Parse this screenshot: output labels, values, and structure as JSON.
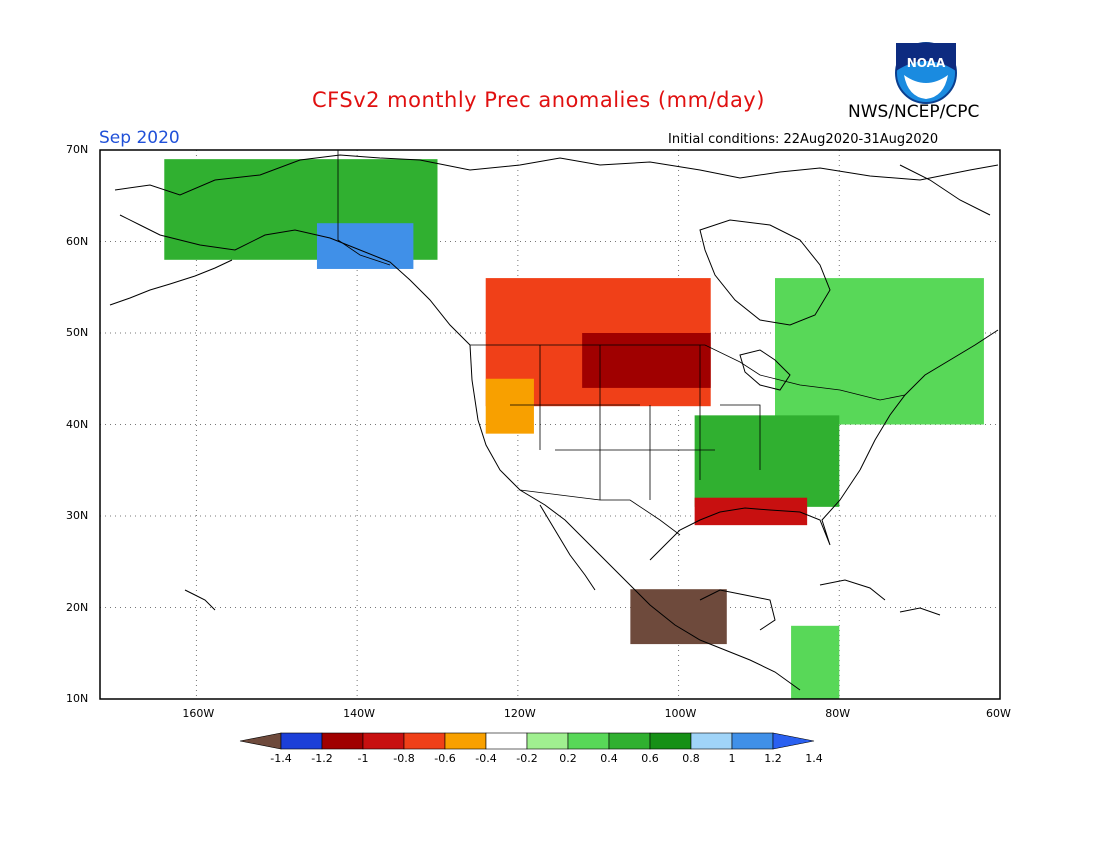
{
  "title": "CFSv2 monthly Prec anomalies (mm/day)",
  "agency": "NWS/NCEP/CPC",
  "logo_text": "NOAA",
  "month_label": "Sep 2020",
  "initial_conditions": "Initial conditions: 22Aug2020-31Aug2020",
  "map": {
    "lon_range": [
      -172,
      -60
    ],
    "lat_range": [
      10,
      70
    ],
    "lat_ticks": [
      {
        "value": 70,
        "label": "70N"
      },
      {
        "value": 60,
        "label": "60N"
      },
      {
        "value": 50,
        "label": "50N"
      },
      {
        "value": 40,
        "label": "40N"
      },
      {
        "value": 30,
        "label": "30N"
      },
      {
        "value": 20,
        "label": "20N"
      },
      {
        "value": 10,
        "label": "10N"
      }
    ],
    "lon_ticks": [
      {
        "value": -160,
        "label": "160W"
      },
      {
        "value": -140,
        "label": "140W"
      },
      {
        "value": -120,
        "label": "120W"
      },
      {
        "value": -100,
        "label": "100W"
      },
      {
        "value": -80,
        "label": "80W"
      },
      {
        "value": -60,
        "label": "60W"
      }
    ],
    "grid": "dotted"
  },
  "colorbar": {
    "colors": [
      "#6e4a3c",
      "#1c3fd8",
      "#a00000",
      "#c81010",
      "#f04018",
      "#f8a000",
      "#ffffff",
      "#a0f090",
      "#58d858",
      "#30b030",
      "#169016",
      "#a0d4f8",
      "#4090e8",
      "#2a60f0"
    ],
    "labels": [
      "-1.4",
      "-1.2",
      "-1",
      "-0.8",
      "-0.6",
      "-0.4",
      "-0.2",
      "0.2",
      "0.4",
      "0.6",
      "0.8",
      "1",
      "1.2",
      "1.4"
    ]
  },
  "anomaly_regions": [
    {
      "category": "wet",
      "color": "#30b030",
      "lon": [
        -164,
        -130
      ],
      "lat": [
        58,
        69
      ]
    },
    {
      "category": "very-wet",
      "color": "#4090e8",
      "lon": [
        -145,
        -133
      ],
      "lat": [
        57,
        62
      ]
    },
    {
      "category": "dry",
      "color": "#f04018",
      "lon": [
        -124,
        -96
      ],
      "lat": [
        42,
        56
      ]
    },
    {
      "category": "very-dry",
      "color": "#a00000",
      "lon": [
        -112,
        -96
      ],
      "lat": [
        44,
        50
      ]
    },
    {
      "category": "dry",
      "color": "#f8a000",
      "lon": [
        -124,
        -118
      ],
      "lat": [
        39,
        45
      ]
    },
    {
      "category": "wet",
      "color": "#58d858",
      "lon": [
        -88,
        -62
      ],
      "lat": [
        40,
        56
      ]
    },
    {
      "category": "wet",
      "color": "#30b030",
      "lon": [
        -98,
        -80
      ],
      "lat": [
        31,
        41
      ]
    },
    {
      "category": "dry",
      "color": "#c81010",
      "lon": [
        -98,
        -84
      ],
      "lat": [
        29,
        32
      ]
    },
    {
      "category": "extreme-dry",
      "color": "#6e4a3c",
      "lon": [
        -106,
        -94
      ],
      "lat": [
        16,
        22
      ]
    },
    {
      "category": "wet",
      "color": "#58d858",
      "lon": [
        -86,
        -80
      ],
      "lat": [
        10,
        18
      ]
    }
  ]
}
